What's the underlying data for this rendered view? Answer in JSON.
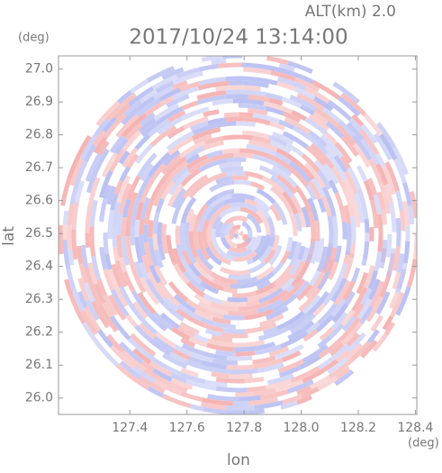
{
  "chart_data": {
    "type": "radar-ppi",
    "title": "2017/10/24 13:14:00",
    "altitude_label": "ALT(km) 2.0",
    "x_label": "lon",
    "x_unit": "(deg)",
    "y_label": "lat",
    "y_unit": "(deg)",
    "xlim": [
      127.15,
      128.405
    ],
    "ylim": [
      25.95,
      27.04
    ],
    "xticks": [
      127.4,
      127.6,
      127.8,
      {
        "value": 128.0,
        "label": "128.0"
      },
      128.2,
      128.4
    ],
    "yticks": [
      {
        "value": 26.0,
        "label": "26.0"
      },
      26.1,
      26.2,
      26.3,
      26.4,
      26.5,
      26.6,
      26.7,
      26.8,
      26.9,
      {
        "value": 27.0,
        "label": "27.0"
      }
    ],
    "colors": [
      "#f5b3b3",
      "#b9bff2"
    ]
  }
}
